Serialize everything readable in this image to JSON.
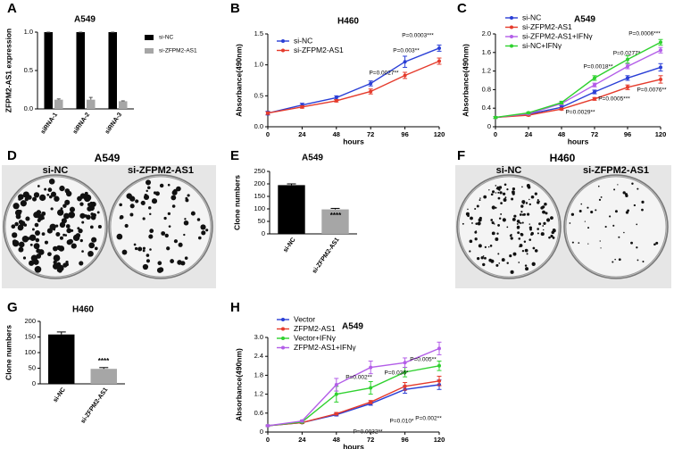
{
  "chart_data": [
    {
      "panel": "A",
      "type": "bar",
      "title": "A549",
      "ylabel": "ZFPM2-AS1 expression",
      "categories": [
        "siRNA-1",
        "siRNA-2",
        "siRNA-3"
      ],
      "series": [
        {
          "name": "si-NC",
          "color": "#000000",
          "values": [
            1,
            1,
            1
          ],
          "errors": [
            0,
            0,
            0
          ]
        },
        {
          "name": "si-ZFPM2-AS1",
          "color": "#a6a6a6",
          "values": [
            0.12,
            0.12,
            0.1
          ],
          "errors": [
            0.01,
            0.03,
            0.005
          ]
        }
      ],
      "ylim": [
        0,
        1
      ],
      "yticks": [
        {
          "value": 0,
          "label": "0.0"
        },
        0.5,
        {
          "value": 1,
          "label": "1.0"
        }
      ]
    },
    {
      "panel": "B",
      "type": "line",
      "title": "H460",
      "xlabel": "hours",
      "ylabel": "Absorbance(490nm)",
      "x": [
        0,
        24,
        48,
        72,
        96,
        120
      ],
      "series": [
        {
          "name": "si-NC",
          "color": "#2a3fd6",
          "values": [
            0.22,
            0.35,
            0.47,
            0.7,
            1.05,
            1.27
          ],
          "errors": [
            0.03,
            0.03,
            0.03,
            0.04,
            0.09,
            0.05
          ]
        },
        {
          "name": "si-ZFPM2-AS1",
          "color": "#e53b2c",
          "values": [
            0.22,
            0.32,
            0.42,
            0.57,
            0.83,
            1.06
          ],
          "errors": [
            0.02,
            0.02,
            0.02,
            0.04,
            0.05,
            0.05
          ]
        }
      ],
      "xlim": [
        0,
        120
      ],
      "xticks": [
        0,
        24,
        48,
        72,
        96,
        120
      ],
      "ylim": [
        0,
        1.5
      ],
      "yticks": [
        {
          "value": 0,
          "label": "0.0"
        },
        0.5,
        {
          "value": 1,
          "label": "1.0"
        },
        1.5
      ],
      "annotations": [
        "P=0.0027**",
        "P=0.003**",
        "P=0.0003***"
      ]
    },
    {
      "panel": "C",
      "type": "line",
      "title": "A549",
      "xlabel": "hours",
      "ylabel": "Absorbance(490nm)",
      "x": [
        0,
        24,
        48,
        72,
        96,
        120
      ],
      "series": [
        {
          "name": "si-NC",
          "color": "#2a3fd6",
          "values": [
            0.2,
            0.27,
            0.42,
            0.75,
            1.05,
            1.28
          ],
          "errors": [
            0.02,
            0.02,
            0.03,
            0.04,
            0.05,
            0.08
          ]
        },
        {
          "name": "si-ZFPM2-AS1",
          "color": "#e53b2c",
          "values": [
            0.2,
            0.25,
            0.38,
            0.6,
            0.85,
            1.02
          ],
          "errors": [
            0.02,
            0.02,
            0.02,
            0.03,
            0.05,
            0.08
          ]
        },
        {
          "name": "si-ZFPM2-AS1+IFNγ",
          "color": "#b35ee8",
          "values": [
            0.2,
            0.28,
            0.5,
            0.9,
            1.3,
            1.65
          ],
          "errors": [
            0.02,
            0.02,
            0.03,
            0.04,
            0.05,
            0.06
          ]
        },
        {
          "name": "si-NC+IFNγ",
          "color": "#2fd12f",
          "values": [
            0.2,
            0.3,
            0.52,
            1.05,
            1.45,
            1.82
          ],
          "errors": [
            0.02,
            0.02,
            0.03,
            0.05,
            0.08,
            0.06
          ]
        }
      ],
      "xlim": [
        0,
        120
      ],
      "xticks": [
        0,
        24,
        48,
        72,
        96,
        120
      ],
      "ylim": [
        0,
        2
      ],
      "yticks": [
        0,
        0.4,
        0.8,
        1.2,
        1.6,
        {
          "value": 2,
          "label": "2.0"
        }
      ],
      "annotations": [
        "P=0.0018**",
        "P=0.0277*",
        "P=0.0006***",
        "P=0.0029**",
        "P=0.0005***",
        "P=0.0076**"
      ]
    },
    {
      "panel": "D",
      "type": "image",
      "title": "A549",
      "labels": [
        "si-NC",
        "si-ZFPM2-AS1"
      ]
    },
    {
      "panel": "E",
      "type": "bar",
      "title": "A549",
      "ylabel": "Clone numbers",
      "categories": [
        "si-NC",
        "si-ZFPM2-AS1"
      ],
      "values": [
        195,
        98
      ],
      "errors": [
        5,
        4
      ],
      "colors": [
        "#000000",
        "#a6a6a6"
      ],
      "ylim": [
        0,
        250
      ],
      "yticks": [
        0,
        50,
        100,
        150,
        200,
        250
      ],
      "annotations": [
        "****"
      ]
    },
    {
      "panel": "F",
      "type": "image",
      "title": "H460",
      "labels": [
        "si-NC",
        "si-ZFPM2-AS1"
      ]
    },
    {
      "panel": "G",
      "type": "bar",
      "title": "H460",
      "ylabel": "Clone numbers",
      "categories": [
        "si-NC",
        "si-ZFPM2-AS1"
      ],
      "values": [
        158,
        48
      ],
      "errors": [
        8,
        4
      ],
      "colors": [
        "#000000",
        "#a6a6a6"
      ],
      "ylim": [
        0,
        200
      ],
      "yticks": [
        0,
        50,
        100,
        150,
        200
      ],
      "annotations": [
        "****"
      ]
    },
    {
      "panel": "H",
      "type": "line",
      "title": "A549",
      "xlabel": "hours",
      "ylabel": "Absorbance(490nm)",
      "x": [
        0,
        24,
        48,
        72,
        96,
        120
      ],
      "series": [
        {
          "name": "Vector",
          "color": "#2a3fd6",
          "values": [
            0.2,
            0.3,
            0.55,
            0.9,
            1.35,
            1.5
          ],
          "errors": [
            0.02,
            0.03,
            0.04,
            0.05,
            0.12,
            0.15
          ]
        },
        {
          "name": "ZFPM2-AS1",
          "color": "#e53b2c",
          "values": [
            0.2,
            0.3,
            0.58,
            0.95,
            1.45,
            1.62
          ],
          "errors": [
            0.02,
            0.03,
            0.04,
            0.05,
            0.12,
            0.15
          ]
        },
        {
          "name": "Vector+IFNγ",
          "color": "#2fd12f",
          "values": [
            0.2,
            0.32,
            1.2,
            1.4,
            1.9,
            2.1
          ],
          "errors": [
            0.02,
            0.03,
            0.25,
            0.2,
            0.15,
            0.15
          ]
        },
        {
          "name": "ZFPM2-AS1+IFNγ",
          "color": "#b35ee8",
          "values": [
            0.2,
            0.35,
            1.5,
            2.05,
            2.2,
            2.65
          ],
          "errors": [
            0.02,
            0.03,
            0.2,
            0.2,
            0.15,
            0.2
          ]
        }
      ],
      "xlim": [
        0,
        120
      ],
      "xticks": [
        0,
        24,
        48,
        72,
        96,
        120
      ],
      "ylim": [
        0,
        3
      ],
      "yticks": [
        0,
        0.6,
        1.2,
        1.8,
        2.4,
        {
          "value": 3,
          "label": "3.0"
        }
      ],
      "annotations": [
        "P=0.002**",
        "P=0.036*",
        "P=0.005**",
        "P=0.0032**",
        "P=0.010*",
        "P=0.002**"
      ]
    }
  ]
}
